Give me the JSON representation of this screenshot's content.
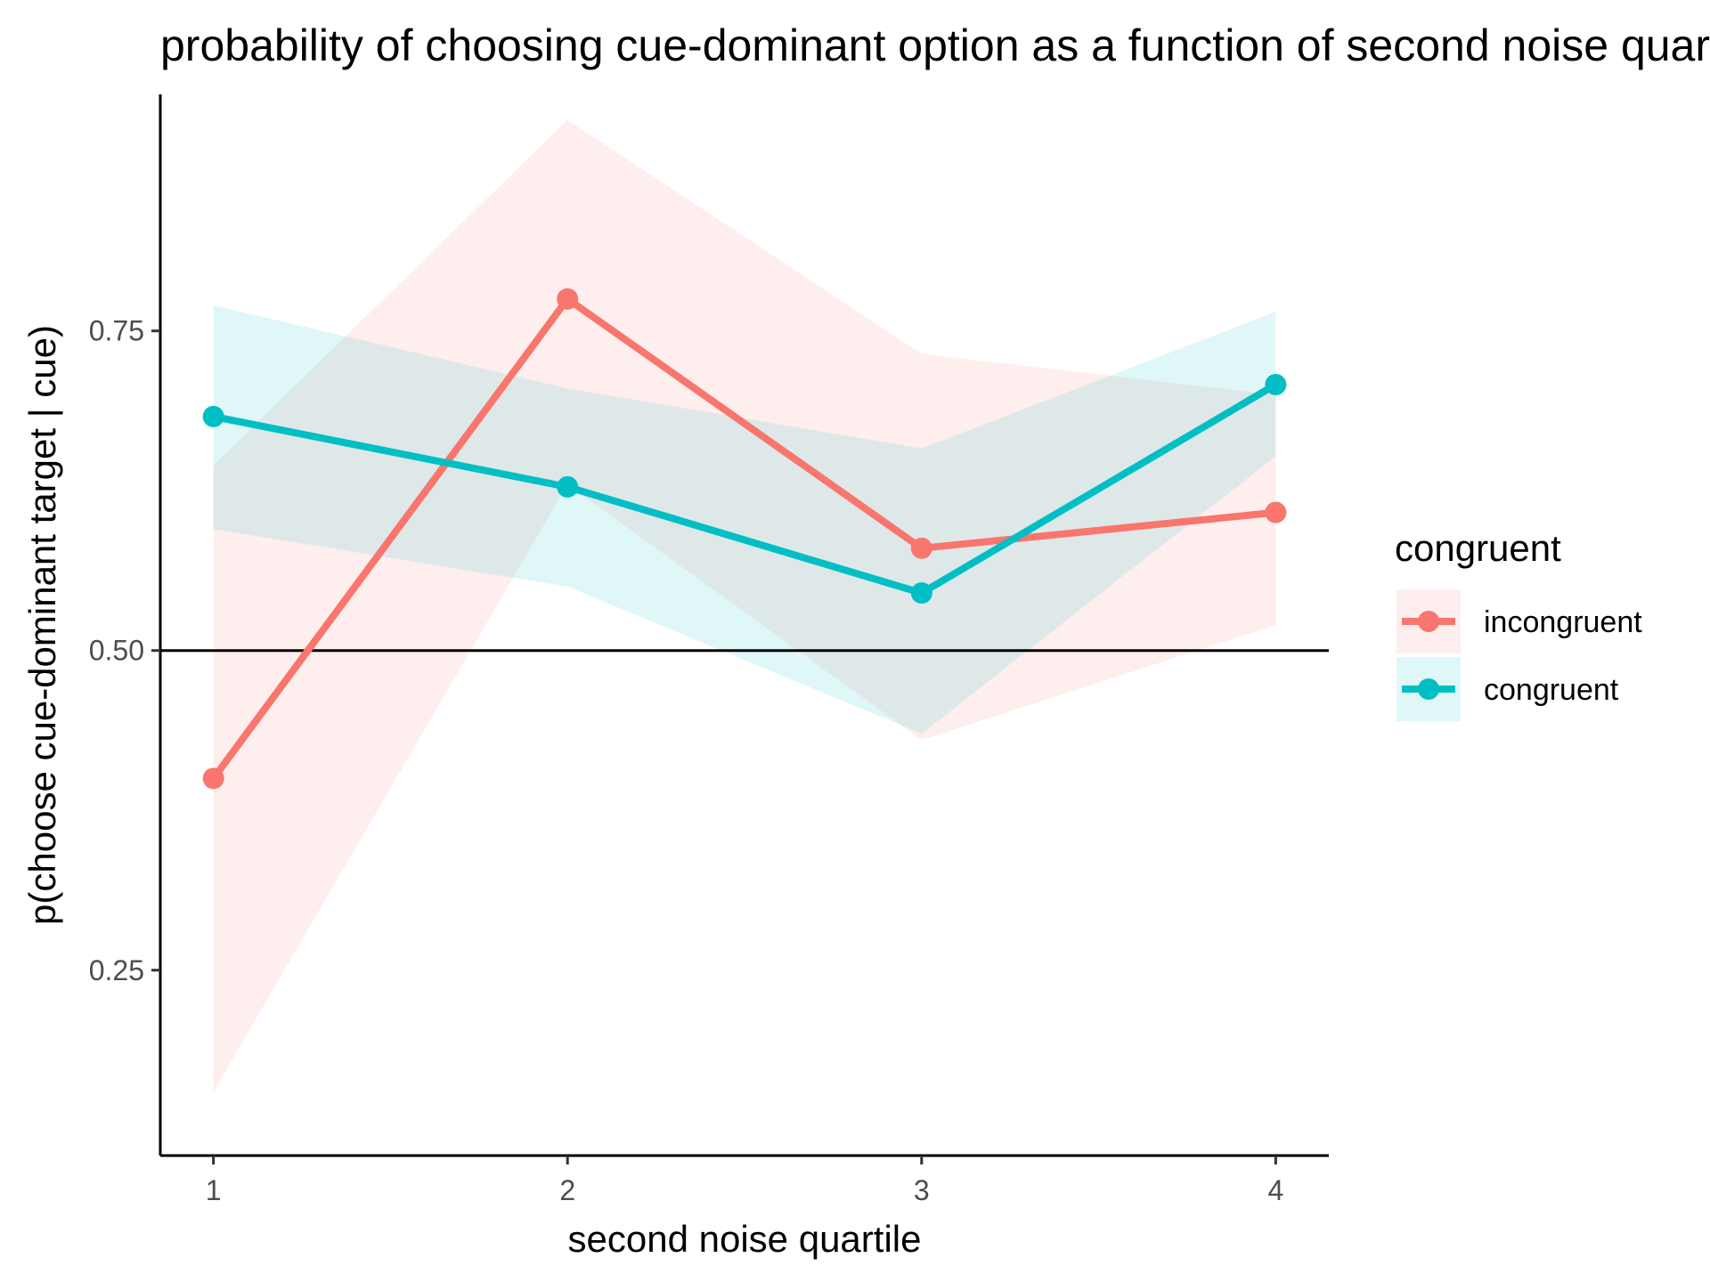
{
  "chart_data": {
    "type": "line",
    "title": "probability of choosing cue-dominant option as a function of second noise quartile",
    "xlabel": "second noise quartile",
    "ylabel": "p(choose cue-dominant target | cue)",
    "x": [
      1,
      2,
      3,
      4
    ],
    "x_tick_labels": [
      "1",
      "2",
      "3",
      "4"
    ],
    "y_ticks": [
      0.25,
      0.5,
      0.75
    ],
    "y_tick_labels": [
      "0.25",
      "0.50",
      "0.75"
    ],
    "xlim": [
      0.85,
      4.15
    ],
    "ylim": [
      0.105,
      0.935
    ],
    "reference_line_y": 0.5,
    "grid": false,
    "legend": {
      "title": "congruent",
      "position": "right"
    },
    "series": [
      {
        "name": "incongruent",
        "color": "#F8766D",
        "values": [
          0.4,
          0.775,
          0.58,
          0.608
        ],
        "ci_lower": [
          0.155,
          0.63,
          0.43,
          0.52
        ],
        "ci_upper": [
          0.645,
          0.915,
          0.732,
          0.7
        ]
      },
      {
        "name": "congruent",
        "color": "#00BFC4",
        "values": [
          0.683,
          0.628,
          0.545,
          0.708
        ],
        "ci_lower": [
          0.595,
          0.55,
          0.435,
          0.652
        ],
        "ci_upper": [
          0.77,
          0.705,
          0.658,
          0.765
        ]
      }
    ]
  }
}
